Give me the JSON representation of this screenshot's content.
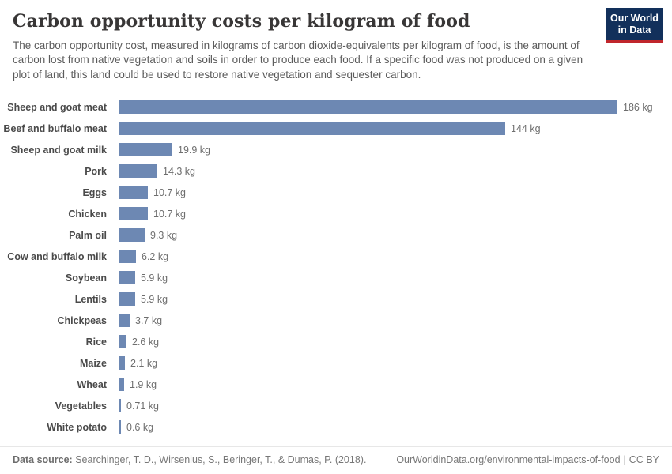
{
  "header": {
    "title": "Carbon opportunity costs per kilogram of food",
    "subtitle": "The carbon opportunity cost, measured in kilograms of carbon dioxide-equivalents per kilogram of food, is the amount of carbon lost from native vegetation and soils in order to produce each food. If a specific food was not produced on a given plot of land, this land could be used to restore native vegetation and sequester carbon.",
    "logo": {
      "line1": "Our World",
      "line2": "in Data",
      "bg_color": "#12305b",
      "accent_color": "#c0262c"
    }
  },
  "chart_data": {
    "type": "bar",
    "orientation": "horizontal",
    "title": "Carbon opportunity costs per kilogram of food",
    "unit": "kg",
    "xlim": [
      0,
      186
    ],
    "grid": false,
    "legend": "none",
    "bar_color": "#6d88b3",
    "categories": [
      "Sheep and goat meat",
      "Beef and buffalo meat",
      "Sheep and goat milk",
      "Pork",
      "Eggs",
      "Chicken",
      "Palm oil",
      "Cow and buffalo milk",
      "Soybean",
      "Lentils",
      "Chickpeas",
      "Rice",
      "Maize",
      "Wheat",
      "Vegetables",
      "White potato"
    ],
    "values": [
      186,
      144,
      19.9,
      14.3,
      10.7,
      10.7,
      9.3,
      6.2,
      5.9,
      5.9,
      3.7,
      2.6,
      2.1,
      1.9,
      0.71,
      0.6
    ],
    "value_labels": [
      "186 kg",
      "144 kg",
      "19.9 kg",
      "14.3 kg",
      "10.7 kg",
      "10.7 kg",
      "9.3 kg",
      "6.2 kg",
      "5.9 kg",
      "5.9 kg",
      "3.7 kg",
      "2.6 kg",
      "2.1 kg",
      "1.9 kg",
      "0.71 kg",
      "0.6 kg"
    ]
  },
  "footer": {
    "source_label": "Data source:",
    "source_text": " Searchinger, T. D., Wirsenius, S., Beringer, T., & Dumas, P. (2018).",
    "url": "OurWorldinData.org/environmental-impacts-of-food",
    "separator": "|",
    "license": "CC BY"
  }
}
